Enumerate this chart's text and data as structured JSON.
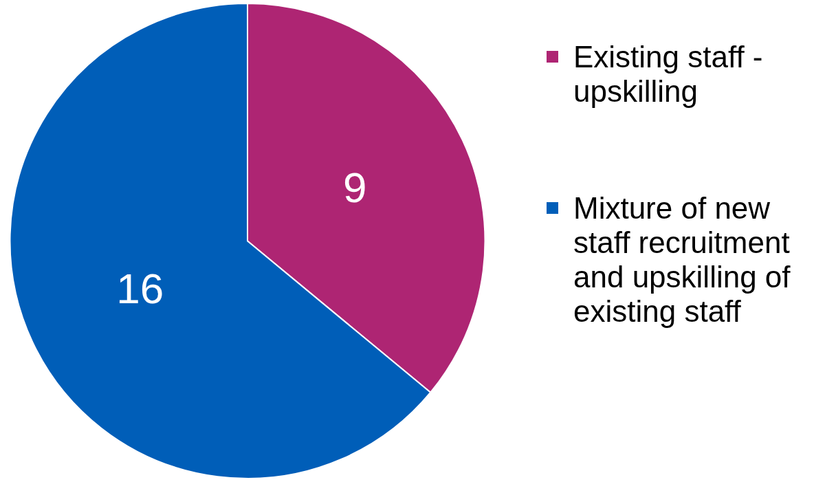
{
  "chart_data": {
    "type": "pie",
    "categories": [
      "Existing staff - upskilling",
      "Mixture of new staff recruitment and upskilling of existing staff"
    ],
    "values": [
      9,
      16
    ],
    "colors": [
      "#ae2573",
      "#005eb8"
    ],
    "data_labels": true,
    "legend": "right"
  }
}
